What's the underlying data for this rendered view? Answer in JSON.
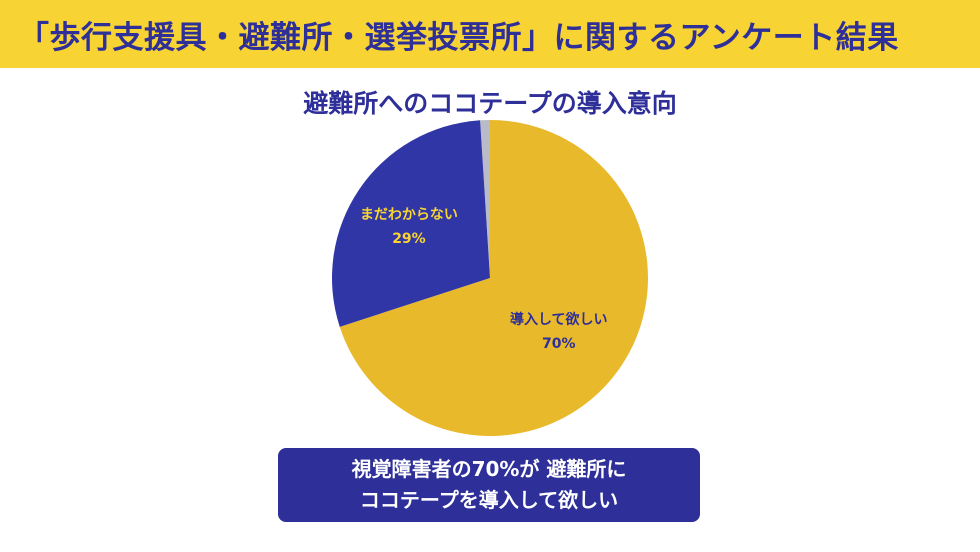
{
  "header": {
    "title": "「歩行支援具・避難所・選挙投票所」に関するアンケート結果"
  },
  "callout": {
    "line1": "視覚障害者の70%が 避難所に",
    "line2": "ココテープを導入して欲しい"
  },
  "colors": {
    "header_bg": "#f7d433",
    "navy": "#2e2f98",
    "yellow": "#e9b92c",
    "gray": "#b9bcc8"
  },
  "chart_data": {
    "type": "pie",
    "title": "避難所へのココテープの導入意向",
    "slices": [
      {
        "label": "導入して欲しい",
        "value": 70,
        "value_label": "70%",
        "color": "#e9b92c"
      },
      {
        "label": "まだわからない",
        "value": 29,
        "value_label": "29%",
        "color": "#3136a6"
      },
      {
        "label": "",
        "value": 1,
        "value_label": "",
        "color": "#b9bcc8"
      }
    ],
    "start": "top",
    "direction": "clockwise"
  }
}
